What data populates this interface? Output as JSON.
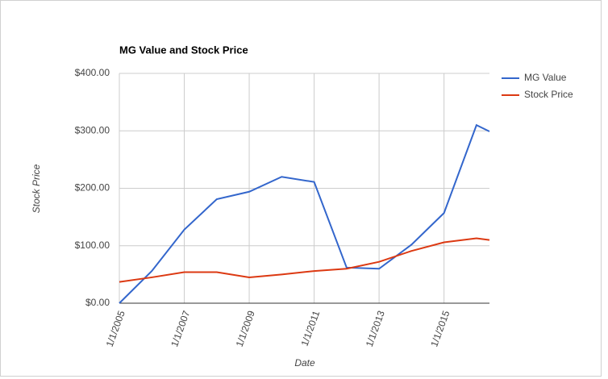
{
  "chart_data": {
    "type": "line",
    "title": "MG Value and Stock Price",
    "x_label": "Date",
    "y_label": "Stock Price",
    "x": [
      2005,
      2006,
      2007,
      2008,
      2009,
      2010,
      2011,
      2012,
      2013,
      2014,
      2015,
      2016,
      2016.4
    ],
    "xlim": [
      2005,
      2016.4
    ],
    "xticks": [
      {
        "value": 2005,
        "label": "1/1/2005"
      },
      {
        "value": 2007,
        "label": "1/1/2007"
      },
      {
        "value": 2009,
        "label": "1/1/2009"
      },
      {
        "value": 2011,
        "label": "1/1/2011"
      },
      {
        "value": 2013,
        "label": "1/1/2013"
      },
      {
        "value": 2015,
        "label": "1/1/2015"
      }
    ],
    "ylim": [
      0,
      400
    ],
    "yticks": [
      {
        "value": 0,
        "label": "$0.00"
      },
      {
        "value": 100,
        "label": "$100.00"
      },
      {
        "value": 200,
        "label": "$200.00"
      },
      {
        "value": 300,
        "label": "$300.00"
      },
      {
        "value": 400,
        "label": "$400.00"
      }
    ],
    "grid": true,
    "legend": "right",
    "series": [
      {
        "name": "MG Value",
        "color": "#3366cc",
        "values": [
          0,
          56,
          128,
          181,
          194,
          220,
          211,
          62,
          60,
          102,
          157,
          310,
          299
        ]
      },
      {
        "name": "Stock Price",
        "color": "#dc3912",
        "values": [
          37,
          45,
          54,
          54,
          45,
          50,
          56,
          60,
          72,
          91,
          106,
          113,
          110
        ]
      }
    ]
  }
}
